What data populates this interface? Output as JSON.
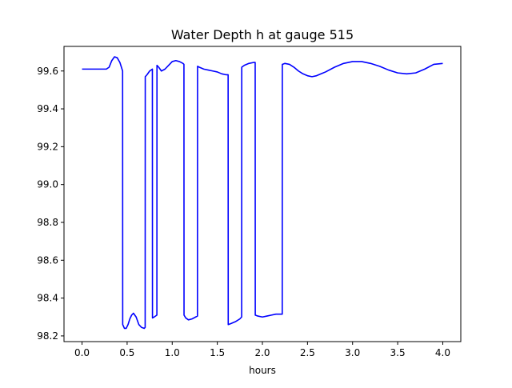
{
  "chart_data": {
    "type": "line",
    "title": "Water Depth h at gauge 515",
    "xlabel": "hours",
    "ylabel": "",
    "xlim": [
      -0.2,
      4.2
    ],
    "ylim": [
      98.17,
      99.73
    ],
    "xticks": [
      0.0,
      0.5,
      1.0,
      1.5,
      2.0,
      2.5,
      3.0,
      3.5,
      4.0
    ],
    "xtick_labels": [
      "0.0",
      "0.5",
      "1.0",
      "1.5",
      "2.0",
      "2.5",
      "3.0",
      "3.5",
      "4.0"
    ],
    "yticks": [
      98.2,
      98.4,
      98.6,
      98.8,
      99.0,
      99.2,
      99.4,
      99.6
    ],
    "ytick_labels": [
      "98.2",
      "98.4",
      "98.6",
      "98.8",
      "99.0",
      "99.2",
      "99.4",
      "99.6"
    ],
    "grid": false,
    "legend": "none",
    "series": [
      {
        "color": "#0000ff",
        "x": [
          0.0,
          0.1,
          0.2,
          0.27,
          0.3,
          0.33,
          0.36,
          0.39,
          0.42,
          0.45,
          0.451,
          0.47,
          0.49,
          0.51,
          0.53,
          0.55,
          0.57,
          0.6,
          0.63,
          0.66,
          0.69,
          0.7,
          0.701,
          0.72,
          0.75,
          0.78,
          0.781,
          0.8,
          0.83,
          0.831,
          0.85,
          0.88,
          0.92,
          0.96,
          1.0,
          1.04,
          1.08,
          1.12,
          1.13,
          1.131,
          1.15,
          1.18,
          1.22,
          1.26,
          1.28,
          1.281,
          1.3,
          1.35,
          1.4,
          1.45,
          1.5,
          1.55,
          1.6,
          1.62,
          1.621,
          1.65,
          1.7,
          1.75,
          1.77,
          1.771,
          1.8,
          1.85,
          1.9,
          1.92,
          1.921,
          1.95,
          2.0,
          2.05,
          2.1,
          2.15,
          2.2,
          2.22,
          2.221,
          2.25,
          2.3,
          2.35,
          2.4,
          2.45,
          2.5,
          2.55,
          2.6,
          2.65,
          2.7,
          2.8,
          2.9,
          3.0,
          3.1,
          3.2,
          3.3,
          3.4,
          3.5,
          3.6,
          3.7,
          3.8,
          3.9,
          4.0
        ],
        "y": [
          99.61,
          99.61,
          99.61,
          99.61,
          99.62,
          99.655,
          99.675,
          99.67,
          99.645,
          99.6,
          98.26,
          98.24,
          98.24,
          98.26,
          98.29,
          98.31,
          98.32,
          98.3,
          98.26,
          98.245,
          98.24,
          98.245,
          99.57,
          99.58,
          99.6,
          99.61,
          98.295,
          98.3,
          98.31,
          99.63,
          99.62,
          99.6,
          99.61,
          99.63,
          99.65,
          99.655,
          99.65,
          99.64,
          99.635,
          98.31,
          98.295,
          98.285,
          98.29,
          98.3,
          98.305,
          99.625,
          99.62,
          99.61,
          99.605,
          99.6,
          99.595,
          99.585,
          99.58,
          99.58,
          98.26,
          98.265,
          98.275,
          98.29,
          98.3,
          99.62,
          99.63,
          99.64,
          99.645,
          99.645,
          98.31,
          98.305,
          98.3,
          98.305,
          98.31,
          98.315,
          98.315,
          98.315,
          99.635,
          99.64,
          99.635,
          99.62,
          99.6,
          99.585,
          99.575,
          99.57,
          99.575,
          99.585,
          99.595,
          99.62,
          99.64,
          99.65,
          99.65,
          99.64,
          99.625,
          99.605,
          99.59,
          99.585,
          99.59,
          99.61,
          99.635,
          99.64
        ]
      }
    ]
  }
}
